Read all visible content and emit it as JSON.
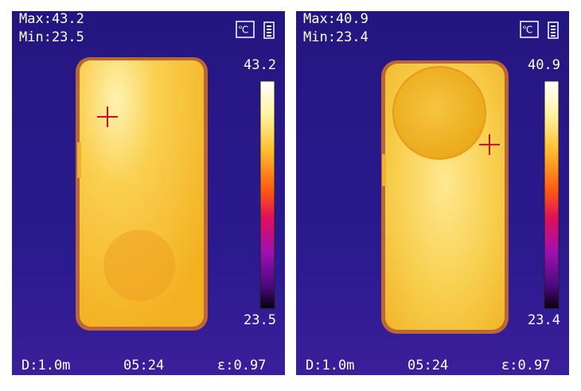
{
  "panels": [
    {
      "max_label": "Max:43.2",
      "min_label": "Min:23.5",
      "scale_max": "43.2",
      "scale_min": "23.5",
      "distance": "D:1.0m",
      "time": "05:24",
      "emissivity": "ε:0.97"
    },
    {
      "max_label": "Max:40.9",
      "min_label": "Min:23.4",
      "scale_max": "40.9",
      "scale_min": "23.4",
      "distance": "D:1.0m",
      "time": "05:24",
      "emissivity": "ε:0.97"
    }
  ]
}
